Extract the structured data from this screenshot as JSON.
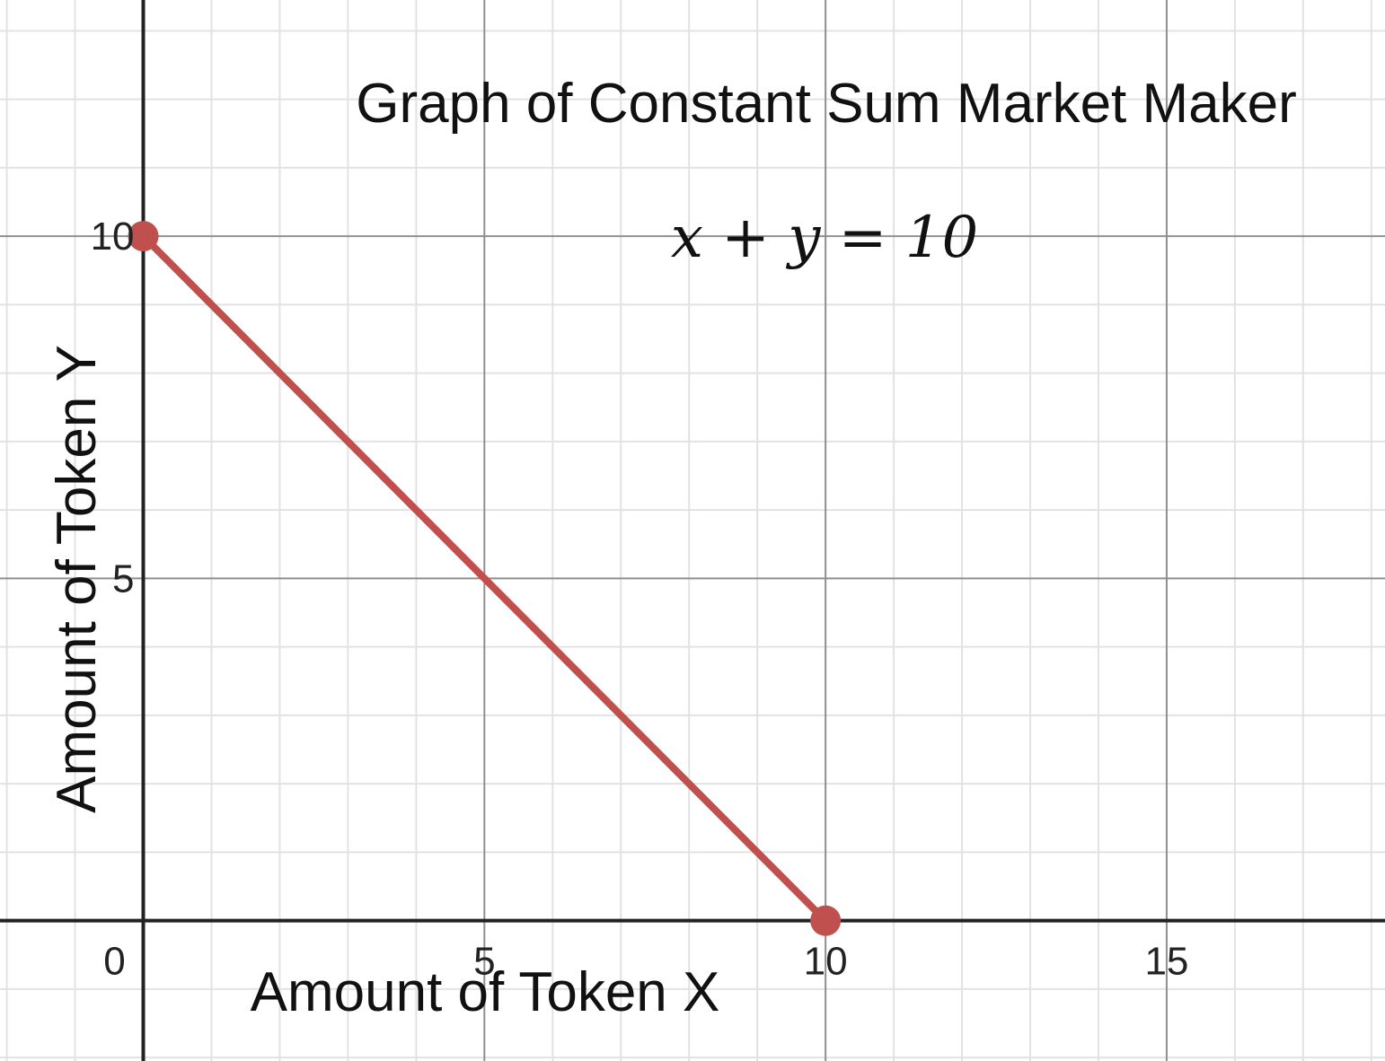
{
  "chart_data": {
    "type": "line",
    "title": "Graph of Constant Sum Market Maker",
    "equation": "x + y = 10",
    "xlabel": "Amount of Token X",
    "ylabel": "Amount of Token Y",
    "x_ticks": [
      "0",
      "5",
      "10",
      "15"
    ],
    "y_ticks": [
      "5",
      "10"
    ],
    "xlim": [
      -2.1,
      18.2
    ],
    "ylim": [
      -2.05,
      13.45
    ],
    "grid": true,
    "series": [
      {
        "x": [
          0,
          10
        ],
        "y": [
          10,
          0
        ],
        "color": "#c0504d"
      }
    ],
    "points": [
      {
        "x": 0,
        "y": 10
      },
      {
        "x": 10,
        "y": 0
      }
    ]
  }
}
